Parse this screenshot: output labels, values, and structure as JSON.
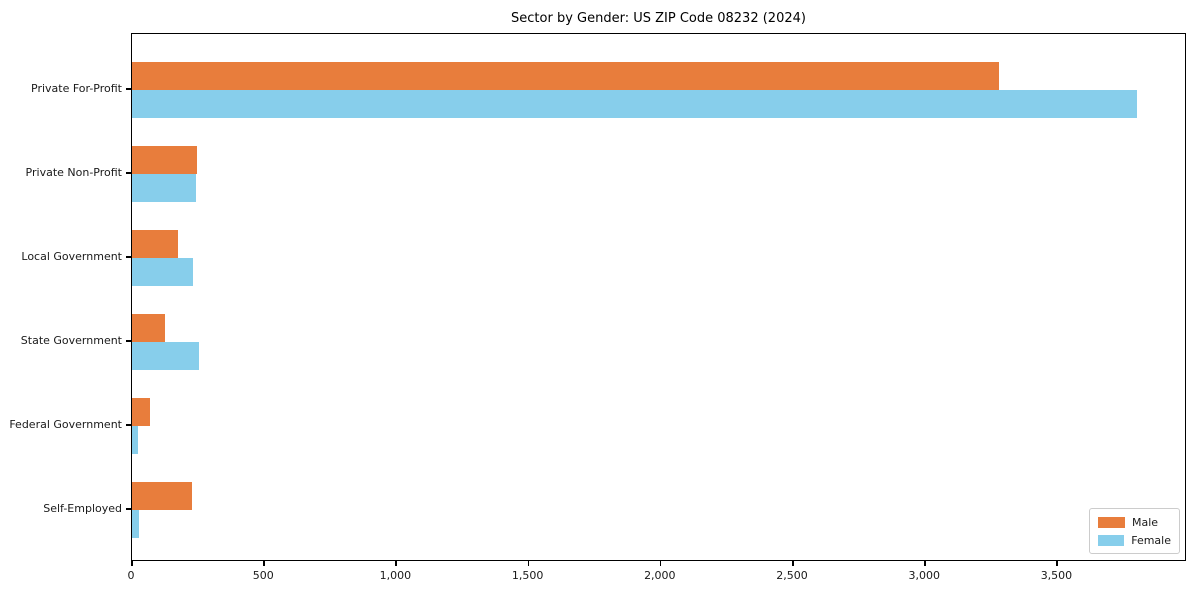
{
  "title": "Sector by Gender: US ZIP Code 08232 (2024)",
  "chart_data": {
    "type": "bar",
    "orientation": "horizontal",
    "title": "Sector by Gender: US ZIP Code 08232 (2024)",
    "categories": [
      "Private For-Profit",
      "Private Non-Profit",
      "Local Government",
      "State Government",
      "Federal Government",
      "Self-Employed"
    ],
    "series": [
      {
        "name": "Male",
        "color": "#E87D3C",
        "values": [
          3280,
          247,
          173,
          126,
          67,
          226
        ]
      },
      {
        "name": "Female",
        "color": "#87CEEB",
        "values": [
          3800,
          243,
          230,
          254,
          24,
          25
        ]
      }
    ],
    "xlabel": "",
    "ylabel": "",
    "xlim": [
      0,
      3990
    ],
    "xticks": {
      "values": [
        0,
        500,
        1000,
        1500,
        2000,
        2500,
        3000,
        3500
      ],
      "labels": [
        "0",
        "500",
        "1,000",
        "1,500",
        "2,000",
        "2,500",
        "3,000",
        "3,500"
      ]
    },
    "legend": {
      "position": "lower right",
      "entries": [
        "Male",
        "Female"
      ]
    },
    "grid": false
  },
  "colors": {
    "axis": "#000000",
    "text": "#1a1a1a",
    "legend_border": "#cccccc",
    "background": "#ffffff"
  }
}
